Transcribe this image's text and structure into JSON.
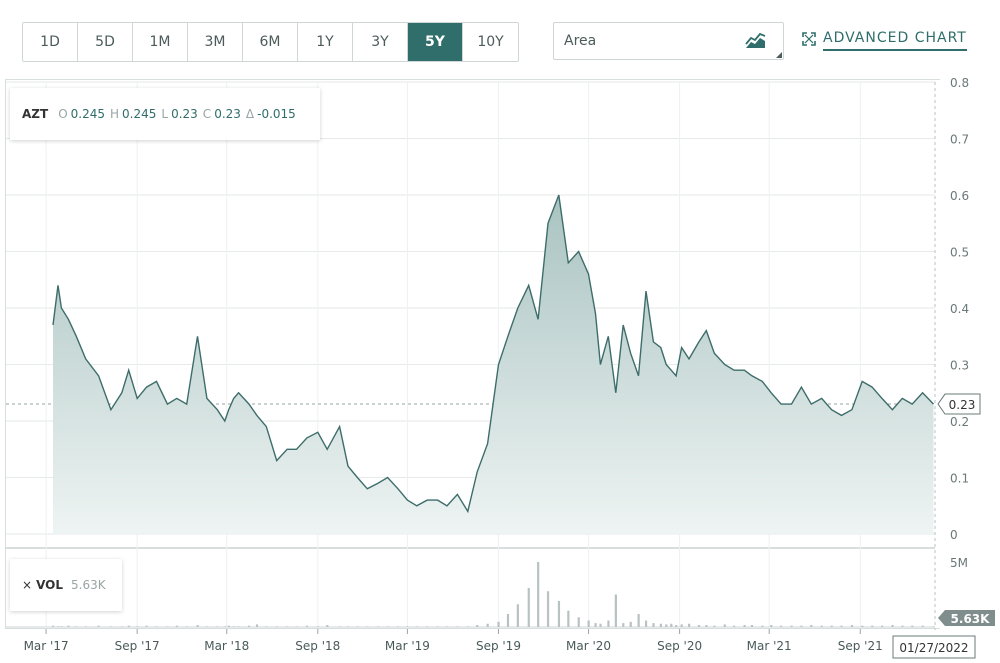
{
  "toolbar": {
    "ranges": [
      "1D",
      "5D",
      "1M",
      "3M",
      "6M",
      "1Y",
      "3Y",
      "5Y",
      "10Y"
    ],
    "active_range": "5Y",
    "chart_type": "Area",
    "advanced_label": "ADVANCED CHART"
  },
  "ohlc": {
    "symbol": "AZT",
    "open_label": "O",
    "open": "0.245",
    "high_label": "H",
    "high": "0.245",
    "low_label": "L",
    "low": "0.23",
    "close_label": "C",
    "close": "0.23",
    "change_label": "Δ",
    "change": "-0.015"
  },
  "volume": {
    "close_label": "×",
    "label": "VOL",
    "value": "5.63K"
  },
  "colors": {
    "line": "#3d6d6a",
    "fill_top": "#a9c3c1",
    "fill_bottom": "#eef4f3",
    "accent": "#2f6e6a",
    "volume_bar": "#b9c2c2"
  },
  "chart_data": {
    "type": "area",
    "x_axis_labels": [
      "Mar '17",
      "Sep '17",
      "Mar '18",
      "Sep '18",
      "Mar '19",
      "Sep '19",
      "Mar '20",
      "Sep '20",
      "Mar '21",
      "Sep '21"
    ],
    "x_axis_end_label": "01/27/2022",
    "y_ticks": [
      "0",
      "0.1",
      "0.2",
      "0.3",
      "0.4",
      "0.5",
      "0.6",
      "0.7",
      "0.8"
    ],
    "ylim": [
      0,
      0.8
    ],
    "last_value_label": "0.23",
    "volume_ticks": [
      "5M"
    ],
    "volume_last_label": "5.63K",
    "x": [
      "2017-03-15",
      "2017-03-25",
      "2017-04-01",
      "2017-04-15",
      "2017-05-01",
      "2017-05-20",
      "2017-06-15",
      "2017-07-10",
      "2017-08-01",
      "2017-08-15",
      "2017-09-01",
      "2017-09-20",
      "2017-10-10",
      "2017-11-01",
      "2017-11-20",
      "2017-12-10",
      "2018-01-01",
      "2018-01-20",
      "2018-02-10",
      "2018-02-25",
      "2018-03-05",
      "2018-03-15",
      "2018-03-25",
      "2018-04-15",
      "2018-05-01",
      "2018-05-20",
      "2018-06-10",
      "2018-07-01",
      "2018-07-20",
      "2018-08-10",
      "2018-09-01",
      "2018-09-20",
      "2018-10-15",
      "2018-11-01",
      "2018-11-20",
      "2018-12-10",
      "2019-01-01",
      "2019-01-20",
      "2019-02-10",
      "2019-03-01",
      "2019-03-20",
      "2019-04-10",
      "2019-05-01",
      "2019-05-20",
      "2019-06-10",
      "2019-07-01",
      "2019-07-20",
      "2019-08-10",
      "2019-09-01",
      "2019-09-20",
      "2019-10-10",
      "2019-11-01",
      "2019-11-20",
      "2019-12-10",
      "2020-01-01",
      "2020-01-20",
      "2020-02-10",
      "2020-03-01",
      "2020-03-15",
      "2020-03-25",
      "2020-04-10",
      "2020-04-25",
      "2020-05-10",
      "2020-05-25",
      "2020-06-10",
      "2020-06-25",
      "2020-07-10",
      "2020-07-25",
      "2020-08-05",
      "2020-08-15",
      "2020-08-25",
      "2020-09-05",
      "2020-09-20",
      "2020-10-10",
      "2020-10-25",
      "2020-11-10",
      "2020-12-01",
      "2020-12-20",
      "2021-01-10",
      "2021-01-25",
      "2021-02-15",
      "2021-03-05",
      "2021-03-25",
      "2021-04-15",
      "2021-05-05",
      "2021-05-25",
      "2021-06-15",
      "2021-07-05",
      "2021-07-25",
      "2021-08-15",
      "2021-09-05",
      "2021-09-25",
      "2021-10-15",
      "2021-11-05",
      "2021-11-25",
      "2021-12-15",
      "2022-01-05",
      "2022-01-27"
    ],
    "values": [
      0.37,
      0.44,
      0.4,
      0.38,
      0.35,
      0.31,
      0.28,
      0.22,
      0.25,
      0.29,
      0.24,
      0.26,
      0.27,
      0.23,
      0.24,
      0.23,
      0.35,
      0.24,
      0.22,
      0.2,
      0.22,
      0.24,
      0.25,
      0.23,
      0.21,
      0.19,
      0.13,
      0.15,
      0.15,
      0.17,
      0.18,
      0.15,
      0.19,
      0.12,
      0.1,
      0.08,
      0.09,
      0.1,
      0.08,
      0.06,
      0.05,
      0.06,
      0.06,
      0.05,
      0.07,
      0.04,
      0.11,
      0.16,
      0.3,
      0.35,
      0.4,
      0.44,
      0.38,
      0.55,
      0.6,
      0.48,
      0.5,
      0.46,
      0.39,
      0.3,
      0.35,
      0.25,
      0.37,
      0.32,
      0.28,
      0.43,
      0.34,
      0.33,
      0.3,
      0.29,
      0.28,
      0.33,
      0.31,
      0.34,
      0.36,
      0.32,
      0.3,
      0.29,
      0.29,
      0.28,
      0.27,
      0.25,
      0.23,
      0.23,
      0.26,
      0.23,
      0.24,
      0.22,
      0.21,
      0.22,
      0.27,
      0.26,
      0.24,
      0.22,
      0.24,
      0.23,
      0.25,
      0.23
    ],
    "volume": [
      0.02,
      0.01,
      0.01,
      0.02,
      0.01,
      0.01,
      0.02,
      0.01,
      0.01,
      0.02,
      0.01,
      0.02,
      0.01,
      0.01,
      0.02,
      0.01,
      0.03,
      0.01,
      0.01,
      0.01,
      0.02,
      0.01,
      0.01,
      0.02,
      0.04,
      0.01,
      0.01,
      0.01,
      0.01,
      0.02,
      0.01,
      0.03,
      0.01,
      0.01,
      0.01,
      0.01,
      0.01,
      0.01,
      0.01,
      0.01,
      0.01,
      0.01,
      0.01,
      0.01,
      0.01,
      0.01,
      0.03,
      0.05,
      0.08,
      0.2,
      0.35,
      0.6,
      1.0,
      0.55,
      0.4,
      0.25,
      0.15,
      0.1,
      0.06,
      0.05,
      0.1,
      0.5,
      0.06,
      0.08,
      0.2,
      0.1,
      0.06,
      0.05,
      0.04,
      0.05,
      0.03,
      0.04,
      0.05,
      0.03,
      0.03,
      0.02,
      0.04,
      0.02,
      0.03,
      0.03,
      0.02,
      0.03,
      0.02,
      0.02,
      0.02,
      0.03,
      0.02,
      0.02,
      0.02,
      0.03,
      0.02,
      0.02,
      0.02,
      0.03,
      0.02,
      0.02,
      0.02,
      0.01
    ]
  }
}
